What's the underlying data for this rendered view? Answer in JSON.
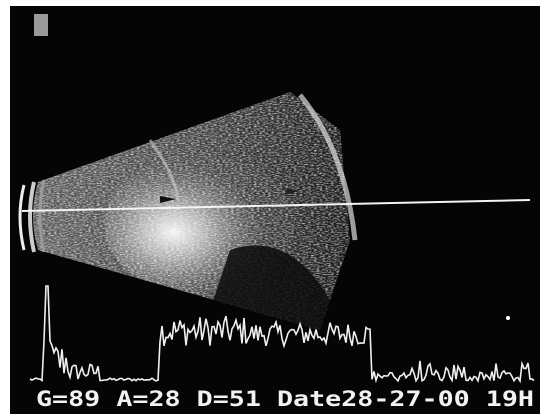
{
  "status_bar": {
    "gain": "G=89",
    "a": "A=28",
    "d": "D=51",
    "date": "Date28-27-00",
    "mode": "19H"
  }
}
